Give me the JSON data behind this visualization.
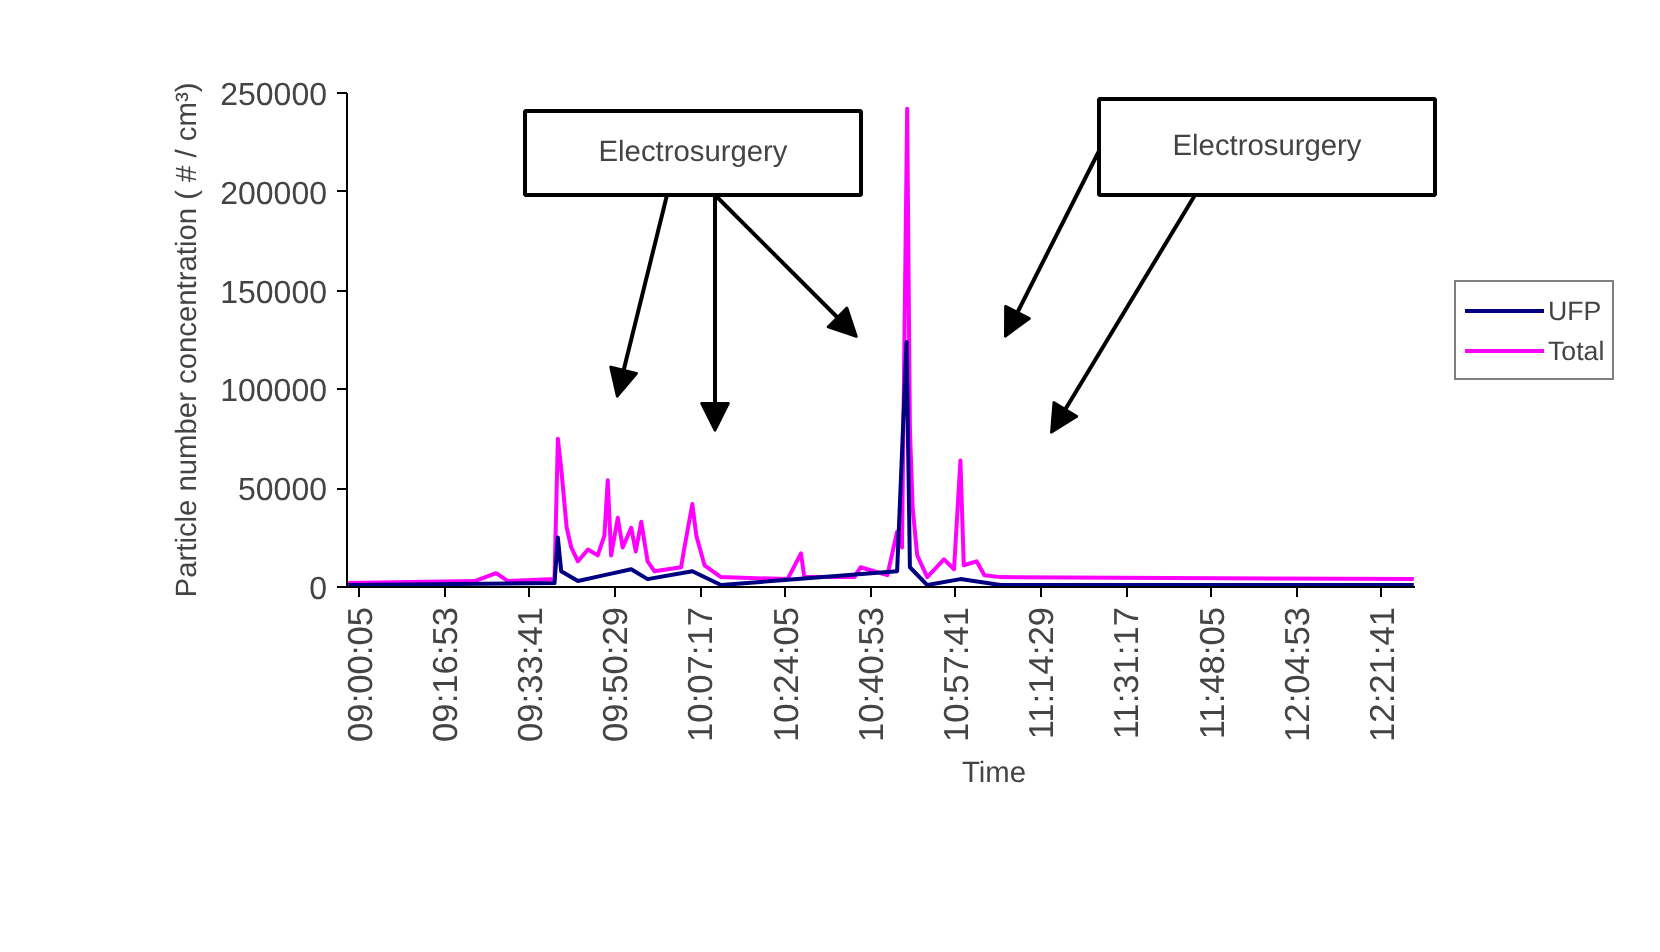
{
  "chart_data": {
    "type": "line",
    "xlabel": "Time",
    "ylabel": "Particle number concentration ( # / cm³)",
    "xlim": [
      8.96,
      12.47
    ],
    "ylim": [
      0,
      250000
    ],
    "xticks": [
      {
        "value": 9.00139,
        "label": "09:00:05"
      },
      {
        "value": 9.28139,
        "label": "09:16:53"
      },
      {
        "value": 9.56139,
        "label": "09:33:41"
      },
      {
        "value": 9.84139,
        "label": "09:50:29"
      },
      {
        "value": 10.12139,
        "label": "10:07:17"
      },
      {
        "value": 10.40139,
        "label": "10:24:05"
      },
      {
        "value": 10.68139,
        "label": "10:40:53"
      },
      {
        "value": 10.96139,
        "label": "10:57:41"
      },
      {
        "value": 11.24139,
        "label": "11:14:29"
      },
      {
        "value": 11.52139,
        "label": "11:31:17"
      },
      {
        "value": 11.80139,
        "label": "11:48:05"
      },
      {
        "value": 12.08139,
        "label": "12:04:53"
      },
      {
        "value": 12.36139,
        "label": "12:21:41"
      }
    ],
    "yticks": [
      0,
      50000,
      100000,
      150000,
      200000,
      250000
    ],
    "grid": false,
    "legend": "right",
    "annotations": [
      "Electrosurgery",
      "Electrosurgery"
    ],
    "series": [
      {
        "name": "Total",
        "color": "#ff00ff",
        "x": [
          8.964,
          9.38,
          9.45,
          9.489,
          9.642,
          9.653,
          9.664,
          9.682,
          9.697,
          9.719,
          9.752,
          9.784,
          9.806,
          9.817,
          9.828,
          9.85,
          9.866,
          9.894,
          9.909,
          9.927,
          9.948,
          9.97,
          10.058,
          10.069,
          10.095,
          10.108,
          10.135,
          10.189,
          10.408,
          10.452,
          10.463,
          10.627,
          10.648,
          10.736,
          10.768,
          10.784,
          10.801,
          10.81,
          10.819,
          10.834,
          10.867,
          10.922,
          10.955,
          10.976,
          10.987,
          11.029,
          11.055,
          11.108,
          12.466
        ],
        "values": [
          2000,
          3000,
          7000,
          3000,
          4000,
          75000,
          60000,
          30000,
          20000,
          13000,
          19000,
          16000,
          26000,
          54000,
          16000,
          35000,
          20000,
          30000,
          18000,
          33000,
          13000,
          8000,
          10000,
          20000,
          42000,
          26000,
          11000,
          5000,
          4000,
          17000,
          5000,
          5000,
          10000,
          6000,
          28000,
          20000,
          242000,
          80000,
          40000,
          16000,
          5000,
          14000,
          9000,
          64000,
          11000,
          13000,
          6000,
          5000,
          4000
        ]
      },
      {
        "name": "UFP",
        "color": "#000080",
        "x": [
          8.964,
          9.642,
          9.653,
          9.664,
          9.719,
          9.806,
          9.894,
          9.948,
          10.095,
          10.189,
          10.768,
          10.799,
          10.81,
          10.867,
          10.976,
          11.108,
          12.466
        ],
        "values": [
          1000,
          2000,
          25000,
          8000,
          3000,
          6000,
          9000,
          4000,
          8000,
          1000,
          8000,
          124000,
          10000,
          1000,
          4000,
          1000,
          1000
        ]
      }
    ]
  }
}
